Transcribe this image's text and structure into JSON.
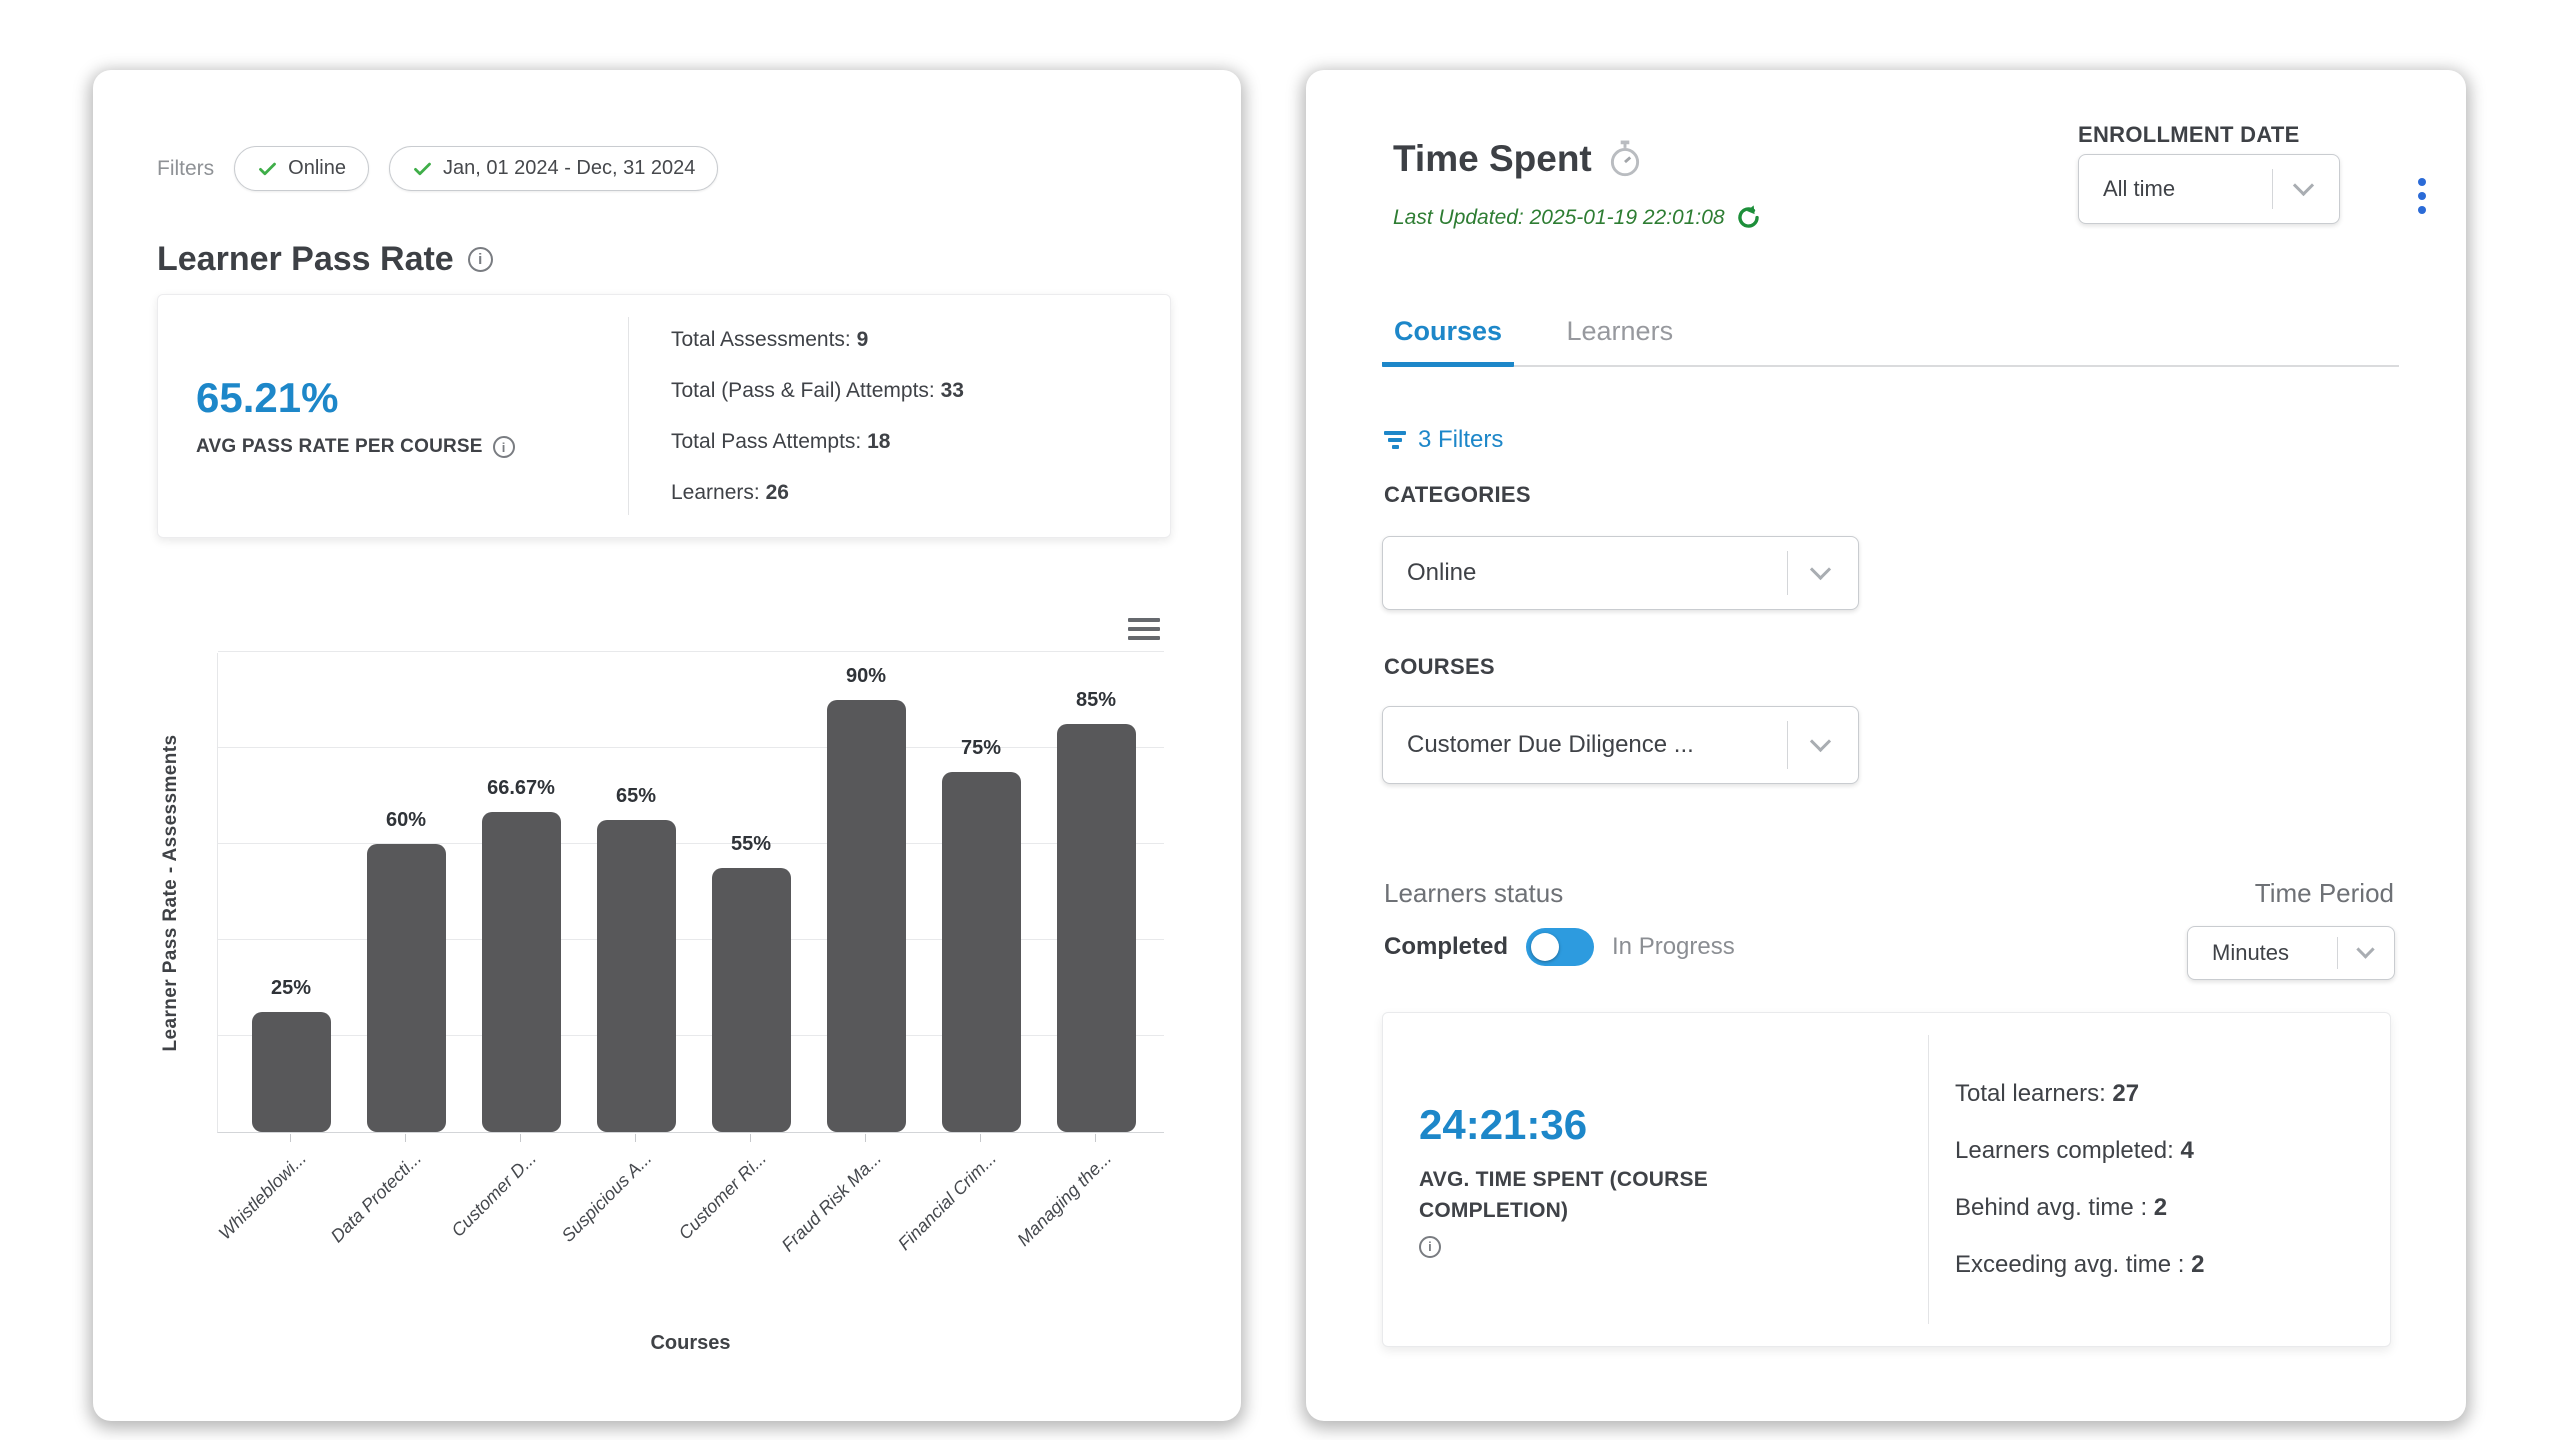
{
  "colors": {
    "accent_blue": "#1d87c9",
    "toggle_blue": "#2d9bdf",
    "kebab_blue": "#2b6bd7",
    "check_green": "#3fae49",
    "updated_green": "#2e7d33",
    "bar_gray": "#58585a"
  },
  "chart_data": {
    "type": "bar",
    "title": "",
    "categories": [
      "Whistleblowi...",
      "Data Protecti...",
      "Customer D...",
      "Suspicious A...",
      "Customer Ri...",
      "Fraud Risk Ma...",
      "Financial Crim...",
      "Managing the..."
    ],
    "values": [
      25,
      60,
      66.67,
      65,
      55,
      90,
      75,
      85
    ],
    "value_labels": [
      "25%",
      "60%",
      "66.67%",
      "65%",
      "55%",
      "90%",
      "75%",
      "85%"
    ],
    "xlabel": "Courses",
    "ylabel": "Learner Pass Rate - Assessments",
    "ylim": [
      0,
      100
    ],
    "grid": true,
    "legend": false,
    "bar_color": "#58585a"
  },
  "pass_rate_card": {
    "filters_label": "Filters",
    "chips": [
      {
        "label": "Online"
      },
      {
        "label": "Jan, 01 2024 - Dec, 31 2024"
      }
    ],
    "title": "Learner Pass Rate",
    "summary": {
      "value": "65.21%",
      "value_caption": "AVG PASS RATE PER COURSE",
      "stats": [
        {
          "label": "Total Assessments:",
          "value": "9"
        },
        {
          "label": "Total (Pass & Fail) Attempts:",
          "value": "33"
        },
        {
          "label": "Total Pass Attempts:",
          "value": "18"
        },
        {
          "label": "Learners:",
          "value": "26"
        }
      ]
    }
  },
  "time_spent_card": {
    "title": "Time Spent",
    "last_updated": "Last Updated: 2025-01-19 22:01:08",
    "enrollment": {
      "label": "ENROLLMENT DATE",
      "value": "All time"
    },
    "tabs": [
      {
        "label": "Courses",
        "active": true
      },
      {
        "label": "Learners",
        "active": false
      }
    ],
    "filters_link": "3 Filters",
    "categories": {
      "label": "CATEGORIES",
      "value": "Online"
    },
    "courses": {
      "label": "COURSES",
      "value": "Customer Due Diligence ..."
    },
    "learners_status": {
      "label": "Learners status",
      "left": "Completed",
      "right": "In Progress",
      "selected": "Completed"
    },
    "time_period": {
      "label": "Time Period",
      "value": "Minutes"
    },
    "summary": {
      "value": "24:21:36",
      "value_caption": "AVG. TIME SPENT (COURSE COMPLETION)",
      "stats": [
        {
          "label": "Total learners:",
          "value": "27"
        },
        {
          "label": "Learners completed:",
          "value": "4"
        },
        {
          "label": "Behind avg. time :",
          "value": "2"
        },
        {
          "label": "Exceeding avg. time :",
          "value": "2"
        }
      ]
    }
  }
}
